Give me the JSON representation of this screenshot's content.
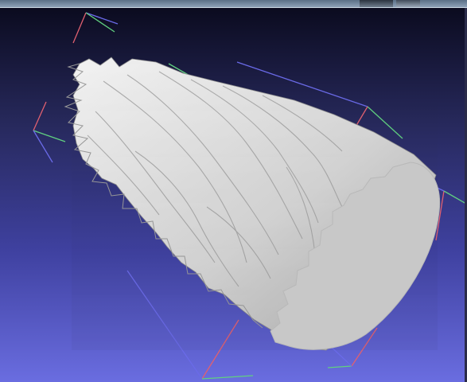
{
  "app": {
    "viewport_background_top": "#0b0b1f",
    "viewport_background_bottom": "#6a6de0"
  },
  "scene": {
    "object_icon": "3d-mesh-icon",
    "mesh_color": "#d8d8d8",
    "cap_color": "#c8c8c8",
    "bbox_x_color": "#e06070",
    "bbox_y_color": "#60d080",
    "bbox_z_color": "#6a6ae8"
  }
}
